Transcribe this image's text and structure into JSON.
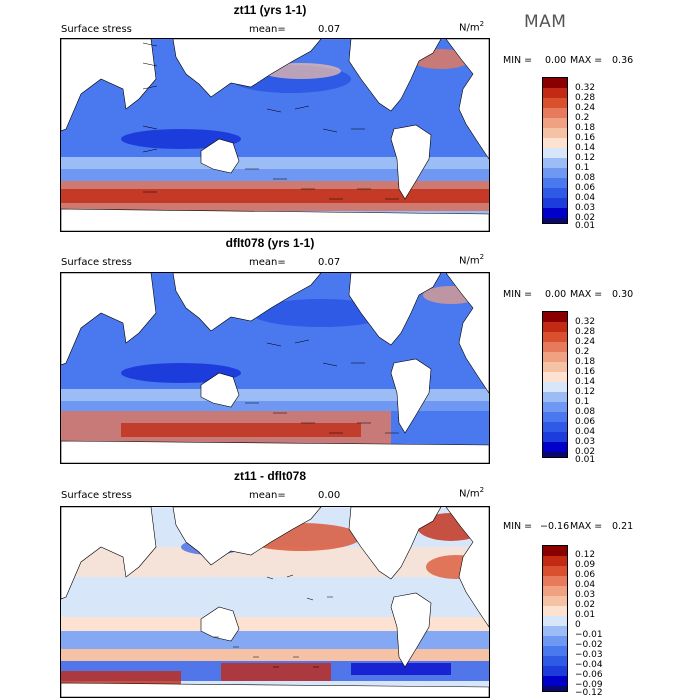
{
  "season": "MAM",
  "panels": [
    {
      "title": "zt11 (yrs 1-1)",
      "variable": "Surface stress",
      "mean_label": "mean=",
      "mean_value": "0.07",
      "unit_base": "N/m",
      "unit_exp": "2",
      "min_label": "MIN =",
      "min_value": "0.00",
      "max_label": "MAX =",
      "max_value": "0.36",
      "colorbar_ticks": [
        "0.32",
        "0.28",
        "0.24",
        "0.2",
        "0.18",
        "0.16",
        "0.14",
        "0.12",
        "0.1",
        "0.08",
        "0.06",
        "0.04",
        "0.03",
        "0.02",
        "0.01"
      ]
    },
    {
      "title": "dflt078 (yrs 1-1)",
      "variable": "Surface stress",
      "mean_label": "mean=",
      "mean_value": "0.07",
      "unit_base": "N/m",
      "unit_exp": "2",
      "min_label": "MIN =",
      "min_value": "0.00",
      "max_label": "MAX =",
      "max_value": "0.30",
      "colorbar_ticks": [
        "0.32",
        "0.28",
        "0.24",
        "0.2",
        "0.18",
        "0.16",
        "0.14",
        "0.12",
        "0.1",
        "0.08",
        "0.06",
        "0.04",
        "0.03",
        "0.02",
        "0.01"
      ]
    },
    {
      "title": "zt11 - dflt078",
      "variable": "Surface stress",
      "mean_label": "mean=",
      "mean_value": "0.00",
      "unit_base": "N/m",
      "unit_exp": "2",
      "min_label": "MIN =",
      "min_value": "−0.16",
      "max_label": "MAX =",
      "max_value": "0.21",
      "colorbar_ticks": [
        "0.12",
        "0.09",
        "0.06",
        "0.04",
        "0.03",
        "0.02",
        "0.01",
        "0",
        "−0.01",
        "−0.02",
        "−0.03",
        "−0.04",
        "−0.06",
        "−0.09",
        "−0.12"
      ]
    }
  ],
  "chart_data": [
    {
      "type": "heatmap",
      "title": "zt11 (yrs 1-1)",
      "variable": "Surface stress",
      "unit": "N/m2",
      "season": "MAM",
      "mean": 0.07,
      "min": 0.0,
      "max": 0.36,
      "colorbar_levels": [
        0.01,
        0.02,
        0.03,
        0.04,
        0.06,
        0.08,
        0.1,
        0.12,
        0.14,
        0.16,
        0.18,
        0.2,
        0.24,
        0.28,
        0.32
      ],
      "colors": [
        "#08086f",
        "#0000c8",
        "#1c3cdc",
        "#2e5ae6",
        "#4a78ee",
        "#6f98f2",
        "#9cbcf6",
        "#d8e6fa",
        "#fde2d2",
        "#f6c2a6",
        "#f0a182",
        "#e67a5a",
        "#d9502f",
        "#c22a14",
        "#8a0000"
      ],
      "overlay": "wind stress vectors"
    },
    {
      "type": "heatmap",
      "title": "dflt078 (yrs 1-1)",
      "variable": "Surface stress",
      "unit": "N/m2",
      "season": "MAM",
      "mean": 0.07,
      "min": 0.0,
      "max": 0.3,
      "colorbar_levels": [
        0.01,
        0.02,
        0.03,
        0.04,
        0.06,
        0.08,
        0.1,
        0.12,
        0.14,
        0.16,
        0.18,
        0.2,
        0.24,
        0.28,
        0.32
      ],
      "colors": [
        "#08086f",
        "#0000c8",
        "#1c3cdc",
        "#2e5ae6",
        "#4a78ee",
        "#6f98f2",
        "#9cbcf6",
        "#d8e6fa",
        "#fde2d2",
        "#f6c2a6",
        "#f0a182",
        "#e67a5a",
        "#d9502f",
        "#c22a14",
        "#8a0000"
      ],
      "overlay": "wind stress vectors"
    },
    {
      "type": "heatmap",
      "title": "zt11 - dflt078",
      "variable": "Surface stress",
      "unit": "N/m2",
      "season": "MAM",
      "mean": 0.0,
      "min": -0.16,
      "max": 0.21,
      "colorbar_levels": [
        -0.12,
        -0.09,
        -0.06,
        -0.04,
        -0.03,
        -0.02,
        -0.01,
        0,
        0.01,
        0.02,
        0.03,
        0.04,
        0.06,
        0.09,
        0.12
      ],
      "colors": [
        "#08086f",
        "#0000c8",
        "#1c3cdc",
        "#2e5ae6",
        "#4a78ee",
        "#6f98f2",
        "#9cbcf6",
        "#d8e6fa",
        "#fde2d2",
        "#f6c2a6",
        "#f0a182",
        "#e67a5a",
        "#d9502f",
        "#c22a14",
        "#8a0000"
      ],
      "overlay": "difference stress vectors"
    }
  ]
}
